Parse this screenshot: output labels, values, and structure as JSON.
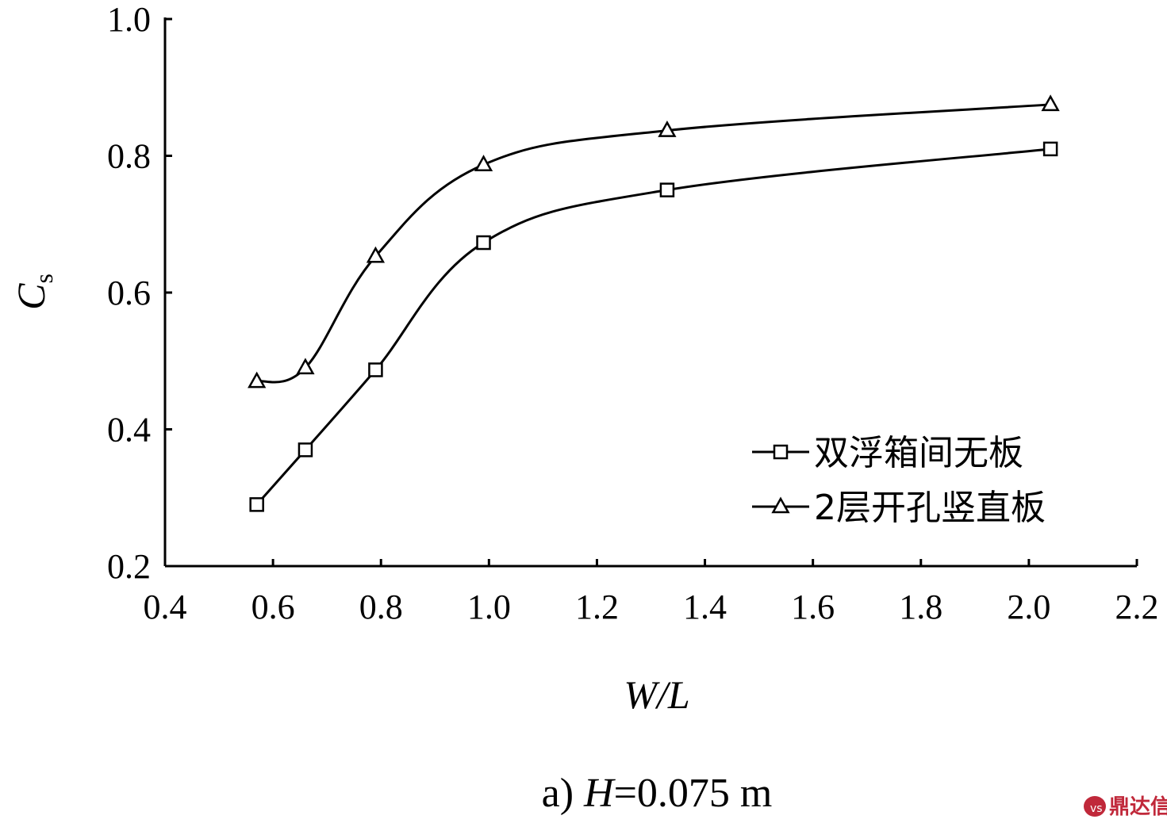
{
  "chart_data": {
    "type": "line",
    "xlabel": "W/L",
    "ylabel": "C",
    "ylabel_sub": "s",
    "xlim": [
      0.4,
      2.2
    ],
    "ylim": [
      0.2,
      1.0
    ],
    "xticks": [
      "0.4",
      "0.6",
      "0.8",
      "1.0",
      "1.2",
      "1.4",
      "1.6",
      "1.8",
      "2.0",
      "2.2"
    ],
    "yticks": [
      "0.2",
      "0.4",
      "0.6",
      "0.8",
      "1.0"
    ],
    "grid": false,
    "legend_position": "bottom-right",
    "series": [
      {
        "name": "双浮箱间无板",
        "marker": "square",
        "x": [
          0.57,
          0.66,
          0.79,
          0.99,
          1.33,
          2.04
        ],
        "y": [
          0.29,
          0.37,
          0.487,
          0.673,
          0.75,
          0.81
        ]
      },
      {
        "name": "2层开孔竖直板",
        "marker": "triangle",
        "x": [
          0.57,
          0.66,
          0.79,
          0.99,
          1.33,
          2.04
        ],
        "y": [
          0.47,
          0.49,
          0.653,
          0.787,
          0.837,
          0.875
        ]
      }
    ]
  },
  "caption": {
    "prefix": "a) ",
    "var": "H",
    "rest": "=0.075 m"
  },
  "watermark": {
    "text": "鼎达信",
    "color": "#c0283a"
  }
}
